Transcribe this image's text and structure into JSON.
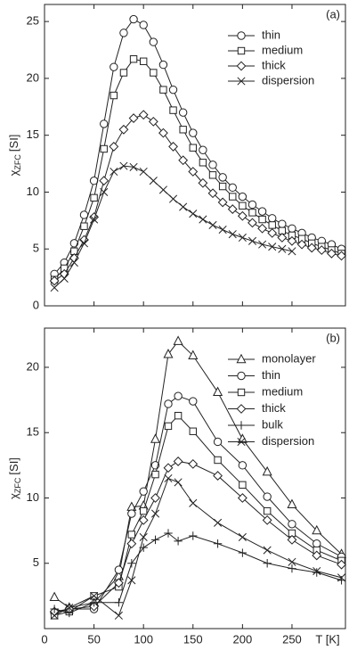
{
  "chart_data": [
    {
      "type": "line",
      "panel_label": "(a)",
      "ylabel_symbol": "χ",
      "ylabel_sub": "ZFC",
      "ylabel_unit": "[SI]",
      "x": [
        10,
        20,
        30,
        40,
        50,
        60,
        70,
        80,
        90,
        100,
        110,
        120,
        130,
        140,
        150,
        160,
        170,
        180,
        190,
        200,
        210,
        220,
        230,
        240,
        250,
        260,
        270,
        280,
        290,
        300
      ],
      "xlim": [
        0,
        304
      ],
      "xticks": [
        0,
        50,
        100,
        150,
        200,
        250
      ],
      "ylim": [
        0,
        26.5
      ],
      "yticks": [
        0,
        5,
        10,
        15,
        20,
        25
      ],
      "legend": "upper right",
      "series": [
        {
          "name": "thin",
          "color": "#222222",
          "marker": "circle",
          "values": [
            2.8,
            3.8,
            5.5,
            8.0,
            11,
            16,
            21,
            24,
            25.2,
            24.7,
            23.2,
            21.2,
            19.0,
            17.0,
            15.2,
            13.7,
            12.4,
            11.3,
            10.4,
            9.6,
            8.9,
            8.3,
            7.7,
            7.2,
            6.8,
            6.4,
            6.0,
            5.7,
            5.4,
            5.0
          ]
        },
        {
          "name": "medium",
          "color": "#222222",
          "marker": "square",
          "values": [
            2.3,
            3.3,
            4.8,
            7.0,
            9.5,
            13.8,
            18.5,
            20.5,
            21.7,
            21.5,
            20.5,
            19.0,
            17.2,
            15.5,
            13.9,
            12.6,
            11.5,
            10.5,
            9.6,
            8.8,
            8.2,
            7.6,
            7.1,
            6.6,
            6.2,
            5.9,
            5.5,
            5.2,
            4.9,
            4.6
          ]
        },
        {
          "name": "thick",
          "color": "#222222",
          "marker": "diamond",
          "values": [
            2.2,
            2.8,
            4.2,
            5.8,
            7.8,
            11.0,
            14.0,
            15.5,
            16.5,
            16.8,
            16.2,
            15.2,
            14.0,
            12.8,
            11.8,
            10.8,
            9.9,
            9.1,
            8.5,
            7.9,
            7.3,
            6.8,
            6.4,
            6.0,
            5.7,
            5.4,
            5.1,
            4.9,
            4.6,
            4.4
          ]
        },
        {
          "name": "dispersion",
          "color": "#222222",
          "marker": "cross",
          "values": [
            1.6,
            2.4,
            3.8,
            5.5,
            7.6,
            10.0,
            11.8,
            12.3,
            12.2,
            11.8,
            11.0,
            10.2,
            9.4,
            8.7,
            8.1,
            7.6,
            7.1,
            6.7,
            6.3,
            6.0,
            5.7,
            5.4,
            5.2,
            5.0,
            4.8,
            null,
            null,
            null,
            null,
            null
          ]
        }
      ]
    },
    {
      "type": "line",
      "panel_label": "(b)",
      "ylabel_symbol": "χ",
      "ylabel_sub": "ZFC",
      "ylabel_unit": "[SI]",
      "xlabel": "T [K]",
      "x": [
        10,
        25,
        50,
        75,
        88,
        100,
        112,
        125,
        135,
        150,
        175,
        200,
        225,
        250,
        275,
        300
      ],
      "xlim": [
        0,
        304
      ],
      "xticks": [
        0,
        50,
        100,
        150,
        200,
        250
      ],
      "ylim": [
        0,
        23
      ],
      "yticks": [
        5,
        10,
        15,
        20
      ],
      "legend": "upper right",
      "series": [
        {
          "name": "monolayer",
          "color": "#222222",
          "marker": "triangle",
          "values": [
            2.4,
            1.6,
            2.0,
            4.0,
            9.3,
            9.4,
            14.5,
            21.0,
            22.0,
            20.9,
            18.1,
            14.5,
            12.0,
            9.5,
            7.5,
            5.7
          ]
        },
        {
          "name": "thin",
          "color": "#222222",
          "marker": "circle",
          "values": [
            1.2,
            1.5,
            1.5,
            4.5,
            8.8,
            10.5,
            12.5,
            17.2,
            17.8,
            17.4,
            14.3,
            12.5,
            10.1,
            8.0,
            6.5,
            5.5
          ]
        },
        {
          "name": "medium",
          "color": "#222222",
          "marker": "square",
          "values": [
            1.0,
            1.3,
            2.5,
            3.2,
            7.2,
            9.0,
            11.8,
            15.5,
            16.3,
            15.1,
            12.9,
            11.0,
            9.0,
            7.3,
            6.0,
            5.2
          ]
        },
        {
          "name": "thick",
          "color": "#222222",
          "marker": "diamond",
          "values": [
            1.3,
            1.5,
            1.7,
            3.5,
            6.5,
            8.3,
            10.0,
            12.3,
            12.8,
            12.6,
            11.7,
            10.0,
            8.3,
            6.8,
            5.6,
            4.9
          ]
        },
        {
          "name": "bulk",
          "color": "#222222",
          "marker": "plus",
          "values": [
            1.5,
            1.2,
            2.0,
            2.0,
            5.0,
            6.2,
            6.8,
            7.3,
            6.7,
            7.1,
            6.5,
            5.8,
            5.0,
            4.6,
            4.3,
            3.7
          ]
        },
        {
          "name": "dispersion",
          "color": "#222222",
          "marker": "cross",
          "values": [
            1.0,
            1.6,
            2.5,
            1.0,
            3.7,
            7.0,
            8.8,
            11.5,
            11.2,
            9.6,
            8.1,
            7.0,
            6.0,
            5.1,
            4.4,
            3.9
          ]
        }
      ]
    }
  ]
}
